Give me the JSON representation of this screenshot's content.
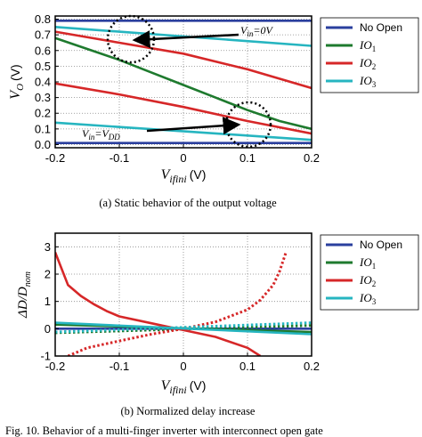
{
  "chart_data": [
    {
      "type": "line",
      "panel_caption": "(a) Static behavior of the output voltage",
      "xlabel": "V_ifini (V)",
      "ylabel": "V_O (V)",
      "xlim": [
        -0.2,
        0.2
      ],
      "ylim": [
        -0.02,
        0.82
      ],
      "xticks": [
        "-0.2",
        "-0.1",
        "0",
        "0.1",
        "0.2"
      ],
      "yticks": [
        "0.0",
        "0.1",
        "0.2",
        "0.3",
        "0.4",
        "0.5",
        "0.6",
        "0.7",
        "0.8"
      ],
      "grid": "dotted",
      "legend_position": "right",
      "legend": [
        "No Open",
        "IO1",
        "IO2",
        "IO3"
      ],
      "annotations": [
        "V_in=0V",
        "V_in=V_DD"
      ],
      "series": [
        {
          "name": "No Open",
          "color": "#2a3f9e",
          "style": "solid",
          "x": [
            -0.2,
            0.2
          ],
          "y": [
            0.79,
            0.79
          ]
        },
        {
          "name": "No Open",
          "color": "#2a3f9e",
          "style": "solid",
          "x": [
            -0.2,
            0.2
          ],
          "y": [
            0.01,
            0.01
          ]
        },
        {
          "name": "IO1",
          "color": "#1e7a2e",
          "style": "solid",
          "x": [
            -0.2,
            -0.15,
            -0.1,
            -0.05,
            0.0,
            0.05,
            0.1,
            0.15,
            0.2
          ],
          "y": [
            0.68,
            0.61,
            0.54,
            0.46,
            0.38,
            0.3,
            0.22,
            0.15,
            0.1
          ]
        },
        {
          "name": "IO2",
          "color": "#d62728",
          "style": "solid",
          "x": [
            -0.2,
            -0.1,
            0.0,
            0.1,
            0.2
          ],
          "y": [
            0.72,
            0.65,
            0.58,
            0.48,
            0.36
          ]
        },
        {
          "name": "IO2",
          "color": "#d62728",
          "style": "solid",
          "x": [
            -0.2,
            -0.1,
            0.0,
            0.1,
            0.2
          ],
          "y": [
            0.39,
            0.32,
            0.24,
            0.15,
            0.07
          ]
        },
        {
          "name": "IO3",
          "color": "#26b5c0",
          "style": "solid",
          "x": [
            -0.2,
            0.2
          ],
          "y": [
            0.75,
            0.63
          ]
        },
        {
          "name": "IO3",
          "color": "#26b5c0",
          "style": "solid",
          "x": [
            -0.2,
            0.2
          ],
          "y": [
            0.14,
            0.03
          ]
        }
      ]
    },
    {
      "type": "line",
      "panel_caption": "(b) Normalized delay increase",
      "xlabel": "V_ifini (V)",
      "ylabel": "ΔD/D_nom",
      "xlim": [
        -0.2,
        0.2
      ],
      "ylim": [
        -1.0,
        3.5
      ],
      "xticks": [
        "-0.2",
        "-0.1",
        "0",
        "0.1",
        "0.2"
      ],
      "yticks": [
        "-1",
        "0",
        "1",
        "2",
        "3"
      ],
      "grid": "dotted",
      "legend_position": "right",
      "legend": [
        "No Open",
        "IO1",
        "IO2",
        "IO3"
      ],
      "series": [
        {
          "name": "No Open",
          "color": "#2a3f9e",
          "style": "solid",
          "x": [
            -0.2,
            0.2
          ],
          "y": [
            0.0,
            0.0
          ]
        },
        {
          "name": "IO1",
          "color": "#1e7a2e",
          "style": "solid",
          "x": [
            -0.2,
            0.2
          ],
          "y": [
            0.15,
            -0.12
          ]
        },
        {
          "name": "IO1",
          "color": "#1e7a2e",
          "style": "dotted",
          "x": [
            -0.2,
            0.2
          ],
          "y": [
            -0.15,
            0.12
          ]
        },
        {
          "name": "IO2",
          "color": "#d62728",
          "style": "solid",
          "x": [
            -0.2,
            -0.18,
            -0.16,
            -0.14,
            -0.12,
            -0.1,
            -0.05,
            0.0,
            0.05,
            0.1,
            0.12
          ],
          "y": [
            2.8,
            1.6,
            1.2,
            0.9,
            0.65,
            0.45,
            0.2,
            -0.05,
            -0.3,
            -0.7,
            -1.0
          ]
        },
        {
          "name": "IO2",
          "color": "#d62728",
          "style": "dotted",
          "x": [
            -0.18,
            -0.15,
            -0.1,
            -0.05,
            0.0,
            0.05,
            0.1,
            0.12,
            0.14,
            0.15,
            0.16
          ],
          "y": [
            -1.0,
            -0.7,
            -0.45,
            -0.2,
            0.0,
            0.25,
            0.7,
            1.05,
            1.6,
            2.1,
            2.8
          ]
        },
        {
          "name": "IO3",
          "color": "#26b5c0",
          "style": "solid",
          "x": [
            -0.2,
            0.2
          ],
          "y": [
            0.22,
            -0.2
          ]
        },
        {
          "name": "IO3",
          "color": "#26b5c0",
          "style": "dotted",
          "x": [
            -0.2,
            0.2
          ],
          "y": [
            -0.12,
            0.22
          ]
        }
      ]
    }
  ],
  "texts": {
    "a": {
      "ylabel_main": "V",
      "ylabel_sub": "O",
      "ylabel_unit": "(V)",
      "xlabel_main": "V",
      "xlabel_sub": "ifini",
      "xlabel_unit": "(V)",
      "ann1_main": "V",
      "ann1_sub": "in",
      "ann1_rest": "=0V",
      "ann2_main": "V",
      "ann2_sub": "in",
      "ann2_eq": "=V",
      "ann2_sub2": "DD",
      "caption": "(a) Static behavior of the output voltage"
    },
    "b": {
      "ylabel_delta": "ΔD/D",
      "ylabel_sub": "nom",
      "xlabel_main": "V",
      "xlabel_sub": "ifini",
      "xlabel_unit": "(V)",
      "caption": "(b) Normalized delay increase"
    },
    "legend": [
      {
        "main": "No Open",
        "sub": ""
      },
      {
        "main": "IO",
        "sub": "1"
      },
      {
        "main": "IO",
        "sub": "2"
      },
      {
        "main": "IO",
        "sub": "3"
      }
    ],
    "bottom_caption": "Fig. 10.   Behavior of a multi-finger inverter with interconnect open gate"
  }
}
